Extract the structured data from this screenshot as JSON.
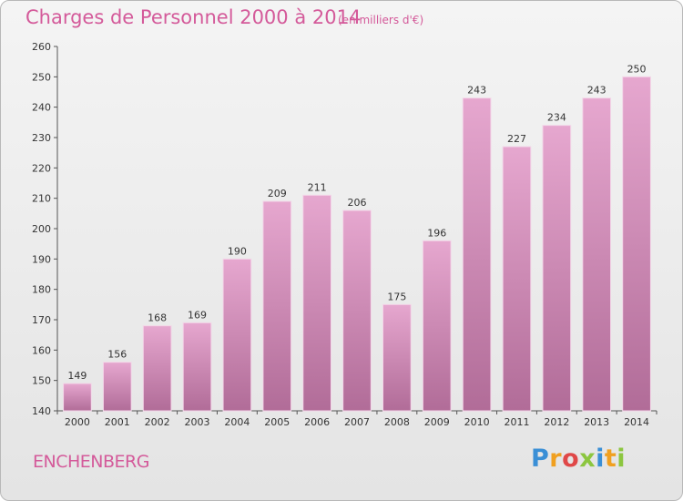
{
  "title": "Charges de Personnel 2000 à 2014",
  "subtitle": "(en milliers d'€)",
  "city": "ENCHENBERG",
  "logo": {
    "letters": [
      "P",
      "r",
      "o",
      "x",
      "i",
      "t",
      "i"
    ],
    "colors": [
      "#3a8fd6",
      "#f0a020",
      "#e04848",
      "#8cc63f",
      "#3a8fd6",
      "#f0a020",
      "#8cc63f"
    ]
  },
  "colors": {
    "bar_top": "#e6a7cf",
    "bar_bottom": "#b16c98",
    "title": "#d45a9a"
  },
  "chart_data": {
    "type": "bar",
    "categories": [
      "2000",
      "2001",
      "2002",
      "2003",
      "2004",
      "2005",
      "2006",
      "2007",
      "2008",
      "2009",
      "2010",
      "2011",
      "2012",
      "2013",
      "2014"
    ],
    "values": [
      149,
      156,
      168,
      169,
      190,
      209,
      211,
      206,
      175,
      196,
      243,
      227,
      234,
      243,
      250
    ],
    "title": "Charges de Personnel 2000 à 2014",
    "subtitle": "(en milliers d'€)",
    "xlabel": "",
    "ylabel": "",
    "ylim": [
      140,
      260
    ],
    "yticks": [
      140,
      150,
      160,
      170,
      180,
      190,
      200,
      210,
      220,
      230,
      240,
      250,
      260
    ],
    "grid": false,
    "data_labels": true
  }
}
